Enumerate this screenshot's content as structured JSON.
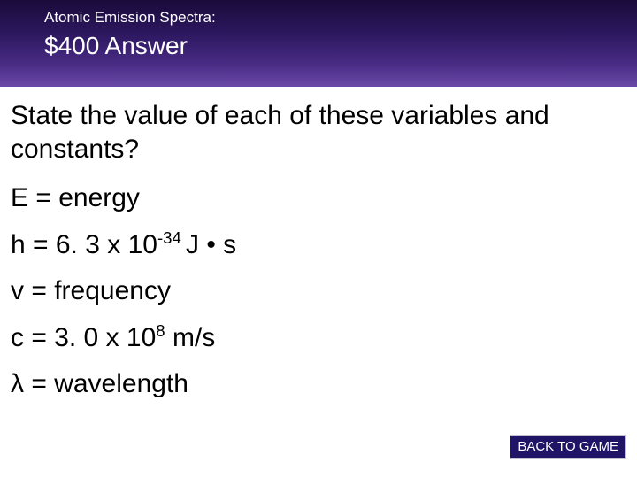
{
  "header": {
    "category": "Atomic Emission Spectra:",
    "amount": "$400 Answer",
    "bg_gradient": [
      "#1a0a3a",
      "#2d1860",
      "#4a2c85",
      "#6b4aa8"
    ],
    "text_color": "#ffffff",
    "category_fontsize": 17,
    "amount_fontsize": 28
  },
  "content": {
    "question": "State the value of each of these variables and constants?",
    "answers": [
      {
        "prefix": "E = ",
        "value": "energy",
        "sup": "",
        "suffix": ""
      },
      {
        "prefix": "h = ",
        "value": "6. 3 x 10",
        "sup": "-34 ",
        "suffix": "J • s"
      },
      {
        "prefix": "v = ",
        "value": "frequency",
        "sup": "",
        "suffix": ""
      },
      {
        "prefix": "c = ",
        "value": "3. 0 x 10",
        "sup": "8",
        "suffix": " m/s"
      },
      {
        "prefix": "λ = ",
        "value": "wavelength",
        "sup": "",
        "suffix": ""
      }
    ],
    "question_fontsize": 30,
    "answer_fontsize": 30,
    "text_color": "#000000",
    "background_color": "#ffffff"
  },
  "button": {
    "label": "BACK TO GAME",
    "bg_color": "#1f1466",
    "text_color": "#ffffff",
    "border_color": "#c0c0d0",
    "fontsize": 15
  }
}
